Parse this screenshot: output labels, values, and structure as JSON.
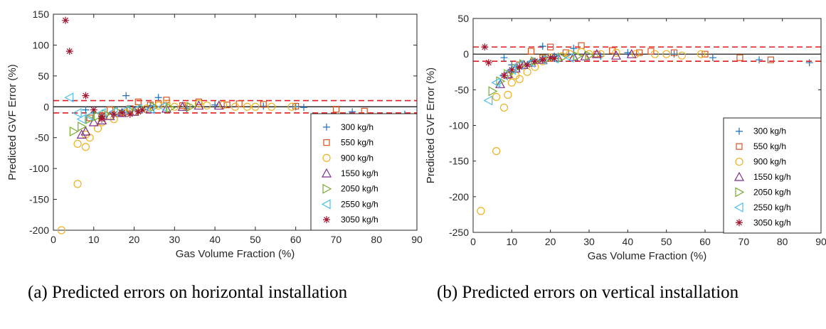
{
  "colors": {
    "300 kg/h": "#1f6fb3",
    "550 kg/h": "#d9531e",
    "900 kg/h": "#edb120",
    "1550 kg/h": "#7e2f8e",
    "2050 kg/h": "#77ac30",
    "2550 kg/h": "#4dbeee",
    "3050 kg/h": "#a2142f",
    "limit_line": "#e31a1c",
    "zero_line": "#000000"
  },
  "chart_data": [
    {
      "type": "scatter",
      "xlabel": "Gas Volume Fraction (%)",
      "ylabel": "Predicted GVF Error (%)",
      "xlim": [
        0,
        90
      ],
      "ylim": [
        -200,
        150
      ],
      "xticks": [
        0,
        10,
        20,
        30,
        40,
        50,
        60,
        70,
        80,
        90
      ],
      "yticks": [
        150,
        100,
        50,
        0,
        -50,
        -100,
        -150,
        -200
      ],
      "reference_lines": [
        {
          "y": 0,
          "style": "solid",
          "color": "black"
        },
        {
          "y": 10,
          "style": "dashed",
          "color": "red"
        },
        {
          "y": -10,
          "style": "dashed",
          "color": "red"
        }
      ],
      "legend_position": "right",
      "series": [
        {
          "name": "300 kg/h",
          "marker": "plus",
          "points": [
            [
              8,
              -5
            ],
            [
              10,
              -10
            ],
            [
              12,
              -16
            ],
            [
              15,
              -12
            ],
            [
              18,
              18
            ],
            [
              21,
              -5
            ],
            [
              24,
              2
            ],
            [
              26,
              15
            ],
            [
              33,
              -3
            ],
            [
              40,
              3
            ],
            [
              52,
              1
            ],
            [
              60,
              0
            ],
            [
              62,
              -1
            ],
            [
              74,
              -8
            ],
            [
              87,
              -12
            ]
          ]
        },
        {
          "name": "550 kg/h",
          "marker": "square",
          "points": [
            [
              9,
              -18
            ],
            [
              12,
              -14
            ],
            [
              14,
              -5
            ],
            [
              17,
              -10
            ],
            [
              19,
              -3
            ],
            [
              21,
              8
            ],
            [
              24,
              3
            ],
            [
              26,
              5
            ],
            [
              28,
              11
            ],
            [
              32,
              2
            ],
            [
              36,
              8
            ],
            [
              43,
              3
            ],
            [
              46,
              5
            ],
            [
              52,
              4
            ],
            [
              60,
              1
            ],
            [
              70,
              -4
            ],
            [
              77,
              -7
            ]
          ]
        },
        {
          "name": "900 kg/h",
          "marker": "circle",
          "points": [
            [
              2,
              -200
            ],
            [
              6,
              -125
            ],
            [
              6,
              -60
            ],
            [
              8,
              -65
            ],
            [
              8,
              -45
            ],
            [
              9,
              -50
            ],
            [
              11,
              -35
            ],
            [
              12,
              -25
            ],
            [
              14,
              -15
            ],
            [
              15,
              -20
            ],
            [
              18,
              -10
            ],
            [
              20,
              -8
            ],
            [
              23,
              -3
            ],
            [
              26,
              2
            ],
            [
              28,
              5
            ],
            [
              30,
              0
            ],
            [
              33,
              0
            ],
            [
              36,
              5
            ],
            [
              38,
              2
            ],
            [
              42,
              3
            ],
            [
              45,
              0
            ],
            [
              48,
              0
            ],
            [
              50,
              0
            ],
            [
              54,
              0
            ],
            [
              59,
              0
            ]
          ]
        },
        {
          "name": "1550 kg/h",
          "marker": "triangle-up",
          "points": [
            [
              7,
              -45
            ],
            [
              8,
              -40
            ],
            [
              10,
              -25
            ],
            [
              12,
              -22
            ],
            [
              14,
              -15
            ],
            [
              17,
              -10
            ],
            [
              20,
              -8
            ],
            [
              24,
              -4
            ],
            [
              28,
              -3
            ],
            [
              32,
              0
            ],
            [
              36,
              2
            ],
            [
              41,
              2
            ]
          ]
        },
        {
          "name": "2050 kg/h",
          "marker": "triangle-right",
          "points": [
            [
              5,
              -40
            ],
            [
              7,
              -32
            ],
            [
              9,
              -20
            ],
            [
              11,
              -15
            ],
            [
              13,
              -12
            ],
            [
              16,
              -8
            ],
            [
              19,
              -6
            ],
            [
              22,
              -4
            ],
            [
              25,
              0
            ],
            [
              29,
              -2
            ],
            [
              34,
              0
            ]
          ]
        },
        {
          "name": "2550 kg/h",
          "marker": "triangle-left",
          "points": [
            [
              4,
              15
            ],
            [
              6,
              -10
            ],
            [
              7,
              -20
            ],
            [
              9,
              -15
            ],
            [
              12,
              -10
            ],
            [
              15,
              -8
            ],
            [
              18,
              -5
            ],
            [
              21,
              -3
            ],
            [
              24,
              -4
            ],
            [
              27,
              0
            ]
          ]
        },
        {
          "name": "3050 kg/h",
          "marker": "asterisk",
          "points": [
            [
              3,
              140
            ],
            [
              4,
              90
            ],
            [
              8,
              18
            ],
            [
              10,
              -5
            ],
            [
              12,
              -15
            ],
            [
              12,
              -20
            ],
            [
              15,
              -12
            ],
            [
              17,
              -10
            ],
            [
              19,
              -12
            ],
            [
              21,
              -8
            ],
            [
              22,
              -5
            ]
          ]
        }
      ]
    },
    {
      "type": "scatter",
      "xlabel": "Gas Volume Fraction (%)",
      "ylabel": "Predicted GVF Error (%)",
      "xlim": [
        0,
        90
      ],
      "ylim": [
        -250,
        50
      ],
      "xticks": [
        0,
        10,
        20,
        30,
        40,
        50,
        60,
        70,
        80,
        90
      ],
      "yticks": [
        50,
        0,
        -50,
        -100,
        -150,
        -200,
        -250
      ],
      "reference_lines": [
        {
          "y": 0,
          "style": "solid",
          "color": "black"
        },
        {
          "y": 10,
          "style": "dashed",
          "color": "red"
        },
        {
          "y": -10,
          "style": "dashed",
          "color": "red"
        }
      ],
      "legend_position": "right",
      "series": [
        {
          "name": "300 kg/h",
          "marker": "plus",
          "points": [
            [
              8,
              -5
            ],
            [
              10,
              -15
            ],
            [
              12,
              -20
            ],
            [
              15,
              -10
            ],
            [
              18,
              11
            ],
            [
              21,
              -3
            ],
            [
              26,
              8
            ],
            [
              33,
              -3
            ],
            [
              40,
              2
            ],
            [
              52,
              0
            ],
            [
              62,
              -5
            ],
            [
              74,
              -8
            ],
            [
              87,
              -12
            ]
          ]
        },
        {
          "name": "550 kg/h",
          "marker": "square",
          "points": [
            [
              9,
              -30
            ],
            [
              12,
              -15
            ],
            [
              15,
              4
            ],
            [
              18,
              -5
            ],
            [
              20,
              10
            ],
            [
              24,
              2
            ],
            [
              28,
              12
            ],
            [
              32,
              0
            ],
            [
              36,
              5
            ],
            [
              43,
              2
            ],
            [
              46,
              4
            ],
            [
              52,
              2
            ],
            [
              60,
              0
            ],
            [
              69,
              -5
            ],
            [
              77,
              -8
            ]
          ]
        },
        {
          "name": "900 kg/h",
          "marker": "circle",
          "points": [
            [
              2,
              -220
            ],
            [
              6,
              -136
            ],
            [
              6,
              -60
            ],
            [
              8,
              -75
            ],
            [
              9,
              -57
            ],
            [
              10,
              -40
            ],
            [
              11,
              -30
            ],
            [
              12,
              -35
            ],
            [
              14,
              -25
            ],
            [
              16,
              -18
            ],
            [
              18,
              -10
            ],
            [
              20,
              -5
            ],
            [
              23,
              -3
            ],
            [
              25,
              0
            ],
            [
              28,
              3
            ],
            [
              30,
              0
            ],
            [
              33,
              0
            ],
            [
              37,
              2
            ],
            [
              42,
              0
            ],
            [
              47,
              0
            ],
            [
              50,
              0
            ],
            [
              54,
              -2
            ],
            [
              59,
              0
            ]
          ]
        },
        {
          "name": "1550 kg/h",
          "marker": "triangle-up",
          "points": [
            [
              7,
              -42
            ],
            [
              9,
              -28
            ],
            [
              11,
              -20
            ],
            [
              13,
              -15
            ],
            [
              15,
              -12
            ],
            [
              18,
              -8
            ],
            [
              22,
              -5
            ],
            [
              26,
              -4
            ],
            [
              29,
              -3
            ],
            [
              32,
              0
            ],
            [
              37,
              -2
            ],
            [
              41,
              0
            ]
          ]
        },
        {
          "name": "2050 kg/h",
          "marker": "triangle-right",
          "points": [
            [
              5,
              -52
            ],
            [
              7,
              -38
            ],
            [
              9,
              -28
            ],
            [
              11,
              -20
            ],
            [
              13,
              -14
            ],
            [
              16,
              -10
            ],
            [
              19,
              -7
            ],
            [
              23,
              -5
            ],
            [
              27,
              -3
            ],
            [
              30,
              -2
            ]
          ]
        },
        {
          "name": "2550 kg/h",
          "marker": "triangle-left",
          "points": [
            [
              4,
              -65
            ],
            [
              6,
              -40
            ],
            [
              8,
              -30
            ],
            [
              10,
              -22
            ],
            [
              12,
              -15
            ],
            [
              15,
              -12
            ],
            [
              18,
              -8
            ],
            [
              21,
              -6
            ],
            [
              25,
              -5
            ]
          ]
        },
        {
          "name": "3050 kg/h",
          "marker": "asterisk",
          "points": [
            [
              3,
              10
            ],
            [
              4,
              -12
            ],
            [
              8,
              -30
            ],
            [
              10,
              -22
            ],
            [
              12,
              -18
            ],
            [
              14,
              -15
            ],
            [
              16,
              -10
            ],
            [
              18,
              -8
            ],
            [
              20,
              -5
            ],
            [
              21,
              -6
            ]
          ]
        }
      ]
    }
  ],
  "captions": {
    "a": "(a) Predicted errors on horizontal installation",
    "b": "(b) Predicted errors on vertical installation"
  }
}
